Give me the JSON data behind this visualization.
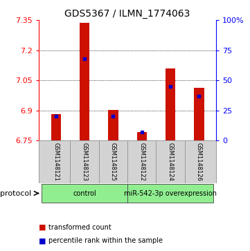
{
  "title": "GDS5367 / ILMN_1774063",
  "samples": [
    "GSM1148121",
    "GSM1148123",
    "GSM1148125",
    "GSM1148122",
    "GSM1148124",
    "GSM1148126"
  ],
  "transformed_counts": [
    6.882,
    7.338,
    6.902,
    6.792,
    7.108,
    7.013
  ],
  "percentile_ranks": [
    20,
    68,
    20,
    7,
    45,
    37
  ],
  "y_min": 6.75,
  "y_max": 7.35,
  "y_ticks": [
    6.75,
    6.9,
    7.05,
    7.2,
    7.35
  ],
  "y_tick_labels": [
    "6.75",
    "6.9",
    "7.05",
    "7.2",
    "7.35"
  ],
  "pct_ticks": [
    0,
    25,
    50,
    75,
    100
  ],
  "pct_tick_labels": [
    "0",
    "25",
    "50",
    "75",
    "100%"
  ],
  "groups": [
    {
      "label": "control",
      "samples": [
        0,
        1,
        2
      ],
      "color": "#90ee90"
    },
    {
      "label": "miR-542-3p overexpression",
      "samples": [
        3,
        4,
        5
      ],
      "color": "#90ee90"
    }
  ],
  "bar_color": "#cc1100",
  "pct_color": "#0000cc",
  "grid_color": "#888888",
  "background_color": "#ffffff",
  "sample_bg": "#d3d3d3",
  "legend_red_label": "transformed count",
  "legend_blue_label": "percentile rank within the sample",
  "protocol_label": "protocol",
  "bar_width": 0.35,
  "title_fontsize": 10,
  "tick_fontsize": 8,
  "sample_fontsize": 6,
  "protocol_fontsize": 8,
  "legend_fontsize": 7
}
